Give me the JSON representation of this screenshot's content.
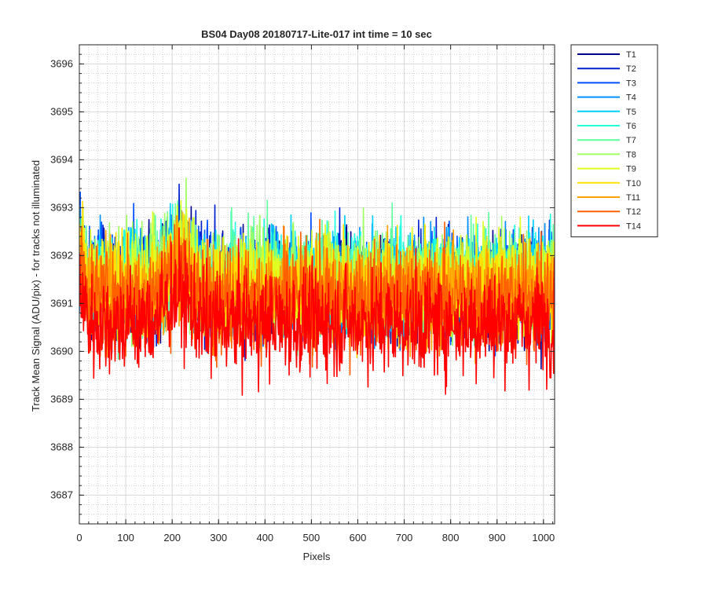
{
  "chart_data": {
    "type": "line",
    "title": "BS04 Day08 20180717-Lite-017 int time = 10 sec",
    "xlabel": "Pixels",
    "ylabel": "Track Mean Signal (ADU/pix) - for tracks not illuminated",
    "xlim": [
      0,
      1024
    ],
    "ylim": [
      3686.4,
      3696.4
    ],
    "xticks": [
      "0",
      "100",
      "200",
      "300",
      "400",
      "500",
      "600",
      "700",
      "800",
      "900",
      "1000"
    ],
    "yticks": [
      "3687",
      "3688",
      "3689",
      "3690",
      "3691",
      "3692",
      "3693",
      "3694",
      "3695",
      "3696"
    ],
    "grid": "on (major and minor)",
    "legend_position": "outside right, top",
    "series": [
      {
        "name": "T1",
        "color": "#00008f",
        "mean": 3691.3,
        "spread": 1.35
      },
      {
        "name": "T2",
        "color": "#0020d0",
        "mean": 3691.4,
        "spread": 1.35
      },
      {
        "name": "T3",
        "color": "#0050ff",
        "mean": 3691.4,
        "spread": 1.35
      },
      {
        "name": "T4",
        "color": "#0090ff",
        "mean": 3691.4,
        "spread": 1.35
      },
      {
        "name": "T5",
        "color": "#00d0ff",
        "mean": 3691.5,
        "spread": 1.35
      },
      {
        "name": "T6",
        "color": "#20ffe0",
        "mean": 3691.5,
        "spread": 1.35
      },
      {
        "name": "T7",
        "color": "#60ffa0",
        "mean": 3691.5,
        "spread": 1.35
      },
      {
        "name": "T8",
        "color": "#a0ff60",
        "mean": 3691.5,
        "spread": 1.35
      },
      {
        "name": "T9",
        "color": "#e0ff20",
        "mean": 3691.4,
        "spread": 1.35
      },
      {
        "name": "T10",
        "color": "#ffe000",
        "mean": 3691.3,
        "spread": 1.35
      },
      {
        "name": "T11",
        "color": "#ffa000",
        "mean": 3691.2,
        "spread": 1.35
      },
      {
        "name": "T12",
        "color": "#ff6000",
        "mean": 3691.1,
        "spread": 1.35
      },
      {
        "name": "T14",
        "color": "#ff0000",
        "mean": 3690.6,
        "spread": 1.4
      }
    ]
  }
}
